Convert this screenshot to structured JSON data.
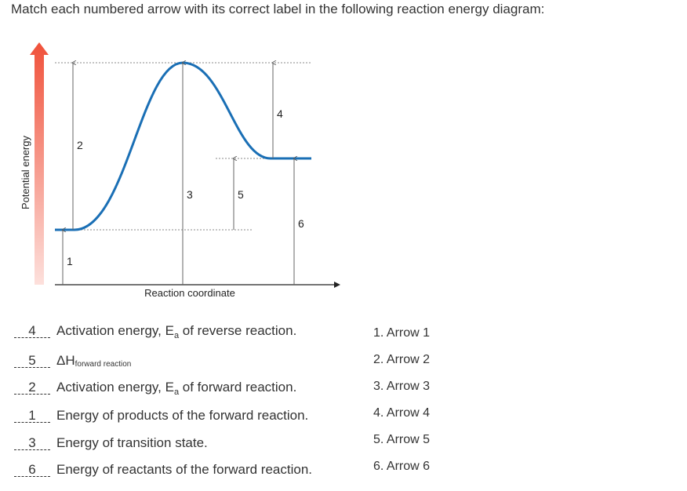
{
  "question": "Match each numbered arrow with its correct label in the following reaction energy diagram:",
  "diagram": {
    "y_axis_label": "Potential energy",
    "x_axis_label": "Reaction coordinate",
    "arrows": [
      "1",
      "2",
      "3",
      "4",
      "5",
      "6"
    ]
  },
  "rows": [
    {
      "answer": "4",
      "segments": [
        {
          "text": "Activation energy, E"
        },
        {
          "text": "a",
          "style": "sub"
        },
        {
          "text": " of reverse reaction."
        }
      ]
    },
    {
      "answer": "5",
      "segments": [
        {
          "text": "ΔH"
        },
        {
          "text": "forward reaction",
          "style": "sub"
        }
      ]
    },
    {
      "answer": "2",
      "segments": [
        {
          "text": "Activation energy, E"
        },
        {
          "text": "a",
          "style": "sub"
        },
        {
          "text": " of forward reaction."
        }
      ]
    },
    {
      "answer": "1",
      "segments": [
        {
          "text": "Energy of products of the forward reaction."
        }
      ]
    },
    {
      "answer": "3",
      "segments": [
        {
          "text": "Energy of transition state."
        }
      ]
    },
    {
      "answer": "6",
      "segments": [
        {
          "text": "Energy of reactants of the forward reaction."
        }
      ]
    }
  ],
  "options": [
    "1. Arrow 1",
    "2. Arrow 2",
    "3. Arrow 3",
    "4. Arrow 4",
    "5. Arrow 5",
    "6. Arrow 6"
  ]
}
